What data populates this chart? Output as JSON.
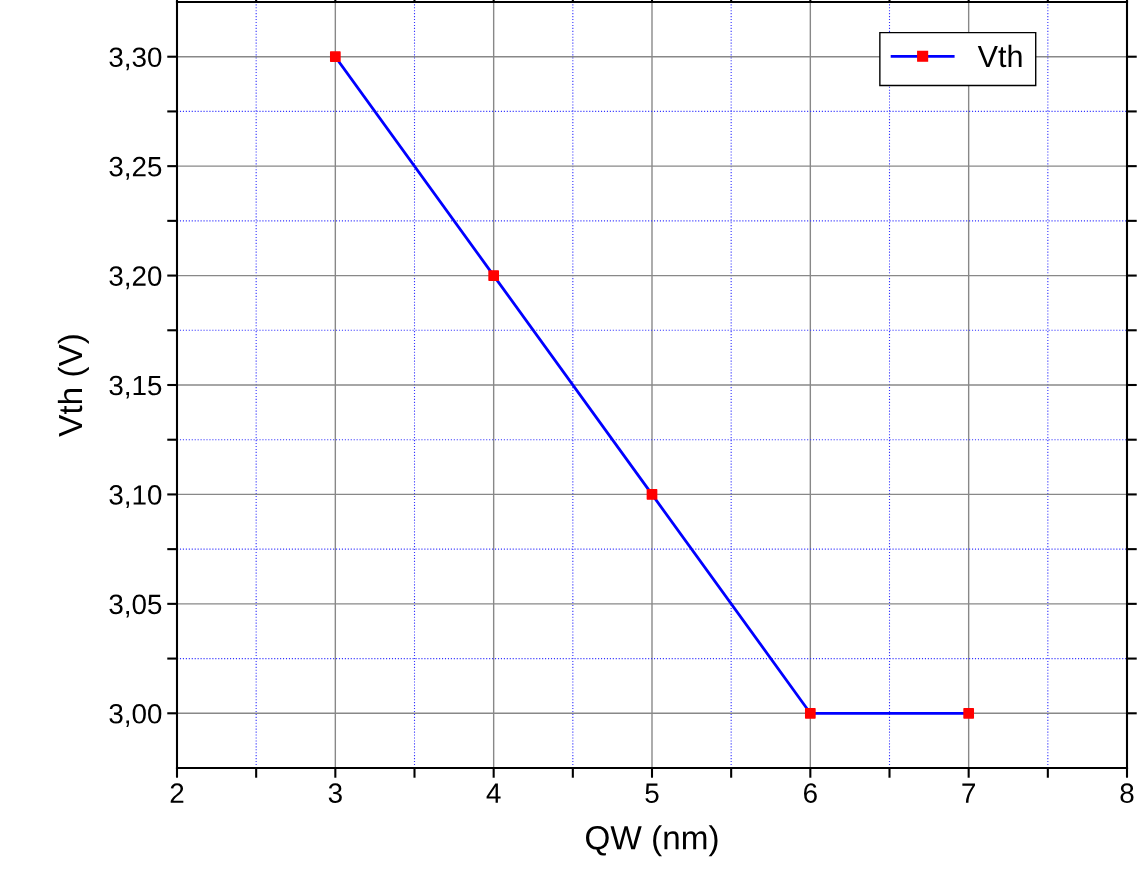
{
  "chart_data": {
    "type": "line",
    "xlabel": "QW (nm)",
    "ylabel": "Vth (V)",
    "x": [
      3,
      4,
      5,
      6,
      7
    ],
    "series": [
      {
        "name": "Vth",
        "color": "#0000ff",
        "colors": [
          "#ff0000",
          "#ff0000",
          "#ff0000",
          "#ff0000",
          "#ff0000"
        ],
        "values": [
          3.3,
          3.2,
          3.1,
          3.0,
          3.0
        ]
      }
    ],
    "xlim": [
      2,
      8
    ],
    "xticks": [
      2,
      {
        "value": 2.5,
        "label": null
      },
      3,
      {
        "value": 3.5,
        "label": null
      },
      4,
      {
        "value": 4.5,
        "label": null
      },
      5,
      {
        "value": 5.5,
        "label": null
      },
      6,
      {
        "value": 6.5,
        "label": null
      },
      7,
      {
        "value": 7.5,
        "label": null
      },
      8
    ],
    "ylim": [
      2.975,
      3.325
    ],
    "yticks": [
      {
        "value": 3.0,
        "label": "3,00"
      },
      {
        "value": 3.025,
        "label": null
      },
      {
        "value": 3.05,
        "label": "3,05"
      },
      {
        "value": 3.075,
        "label": null
      },
      {
        "value": 3.1,
        "label": "3,10"
      },
      {
        "value": 3.125,
        "label": null
      },
      {
        "value": 3.15,
        "label": "3,15"
      },
      {
        "value": 3.175,
        "label": null
      },
      {
        "value": 3.2,
        "label": "3,20"
      },
      {
        "value": 3.225,
        "label": null
      },
      {
        "value": 3.25,
        "label": "3,25"
      },
      {
        "value": 3.275,
        "label": null
      },
      {
        "value": 3.3,
        "label": "3,30"
      }
    ],
    "grid": true,
    "legend": "top right",
    "marker": "square",
    "line_style": "solid"
  }
}
